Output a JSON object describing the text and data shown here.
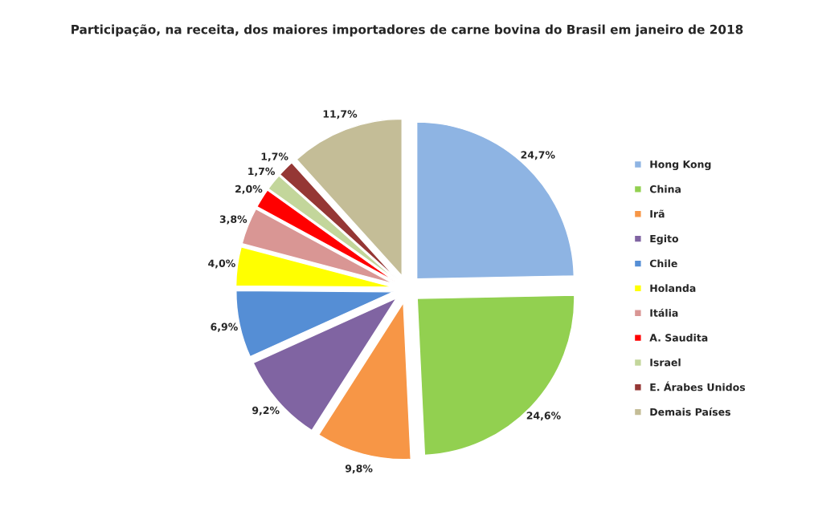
{
  "chart_data": {
    "type": "pie",
    "title": "Participação, na receita, dos maiores importadores de carne bovina do Brasil em janeiro de 2018",
    "categories": [
      "Hong Kong",
      "China",
      "Irã",
      "Egito",
      "Chile",
      "Holanda",
      "Itália",
      "A. Saudita",
      "Israel",
      "E. Árabes Unidos",
      "Demais Países"
    ],
    "values": [
      24.7,
      24.6,
      9.8,
      9.2,
      6.9,
      4.0,
      3.8,
      2.0,
      1.7,
      1.7,
      11.7
    ],
    "value_labels": [
      "24,7%",
      "24,6%",
      "9,8%",
      "9,2%",
      "6,9%",
      "4,0%",
      "3,8%",
      "2,0%",
      "1,7%",
      "1,7%",
      "11,7%"
    ],
    "colors": [
      "#8eb4e3",
      "#92d050",
      "#f79646",
      "#8064a2",
      "#558ed5",
      "#ffff00",
      "#d99694",
      "#ff0000",
      "#c3d69b",
      "#953735",
      "#c4bd97"
    ],
    "legend": "right"
  }
}
